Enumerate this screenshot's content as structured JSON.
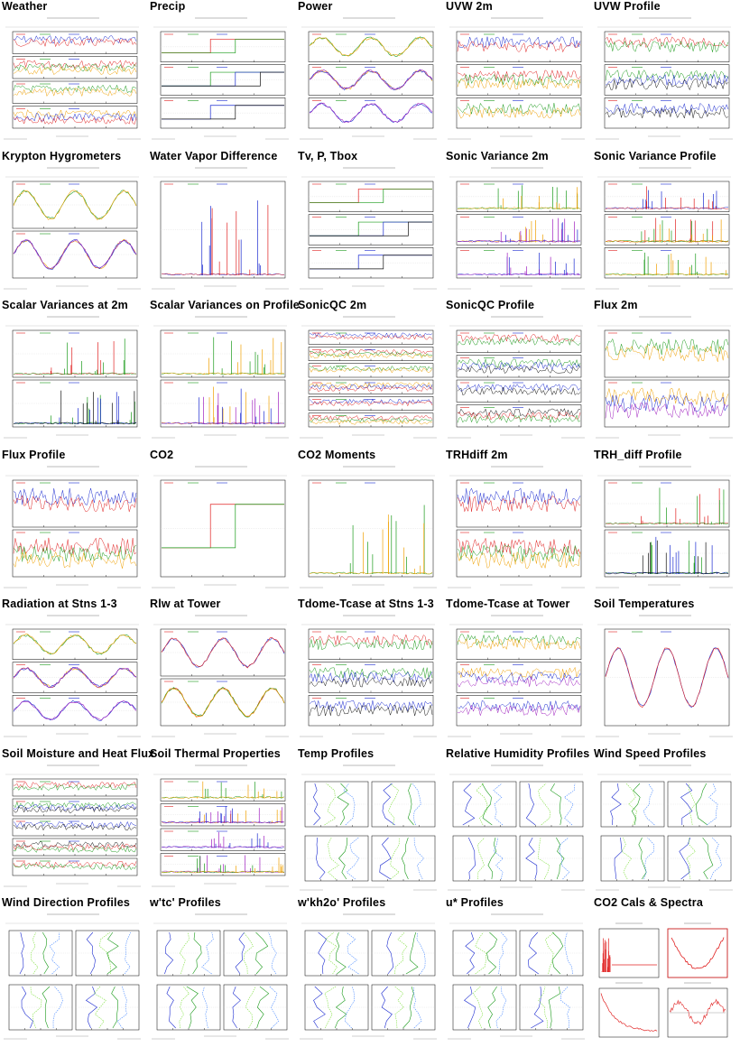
{
  "page": {
    "plots": [
      {
        "title": "Weather",
        "kind": "weather"
      },
      {
        "title": "Precip",
        "kind": "precip"
      },
      {
        "title": "Power",
        "kind": "power"
      },
      {
        "title": "UVW 2m",
        "kind": "uvw2"
      },
      {
        "title": "UVW Profile",
        "kind": "uvwprof"
      },
      {
        "title": "Krypton Hygrometers",
        "kind": "krypton"
      },
      {
        "title": "Water Vapor Difference",
        "kind": "wvdiff"
      },
      {
        "title": "Tv, P, Tbox",
        "kind": "tvp"
      },
      {
        "title": "Sonic Variance 2m",
        "kind": "sonicvar2"
      },
      {
        "title": "Sonic Variance Profile",
        "kind": "sonicvarp"
      },
      {
        "title": "Scalar Variances at 2m",
        "kind": "scalar2"
      },
      {
        "title": "Scalar Variances on Profile",
        "kind": "scalarp"
      },
      {
        "title": "SonicQC 2m",
        "kind": "qc2"
      },
      {
        "title": "SonicQC Profile",
        "kind": "qcp"
      },
      {
        "title": "Flux 2m",
        "kind": "flux2"
      },
      {
        "title": "Flux Profile",
        "kind": "fluxp"
      },
      {
        "title": "CO2",
        "kind": "co2"
      },
      {
        "title": "CO2 Moments",
        "kind": "co2m"
      },
      {
        "title": "TRHdiff 2m",
        "kind": "trh2"
      },
      {
        "title": "TRH_diff Profile",
        "kind": "trhp"
      },
      {
        "title": "Radiation at Stns 1-3",
        "kind": "rad"
      },
      {
        "title": "Rlw at Tower",
        "kind": "rlw"
      },
      {
        "title": "Tdome-Tcase at Stns 1-3",
        "kind": "tdome"
      },
      {
        "title": "Tdome-Tcase at Tower",
        "kind": "tdomet"
      },
      {
        "title": "Soil Temperatures",
        "kind": "soilt"
      },
      {
        "title": "Soil Moisture and Heat Flux",
        "kind": "soilm"
      },
      {
        "title": "Soil Thermal Properties",
        "kind": "soilp"
      },
      {
        "title": "Temp Profiles",
        "kind": "prof"
      },
      {
        "title": "Relative Humidity Profiles",
        "kind": "prof"
      },
      {
        "title": "Wind Speed Profiles",
        "kind": "prof"
      },
      {
        "title": "Wind Direction Profiles",
        "kind": "prof"
      },
      {
        "title": "w'tc' Profiles",
        "kind": "prof"
      },
      {
        "title": "w'kh2o' Profiles",
        "kind": "prof"
      },
      {
        "title": "u* Profiles",
        "kind": "prof"
      },
      {
        "title": "CO2 Cals & Spectra",
        "kind": "cals"
      }
    ]
  },
  "colors": {
    "red": "#e02020",
    "green": "#1a9a1a",
    "blue": "#1a2ad0",
    "orange": "#f0a000",
    "purple": "#a020c0",
    "black": "#111111",
    "lime": "#80e040",
    "gray": "#888888"
  }
}
